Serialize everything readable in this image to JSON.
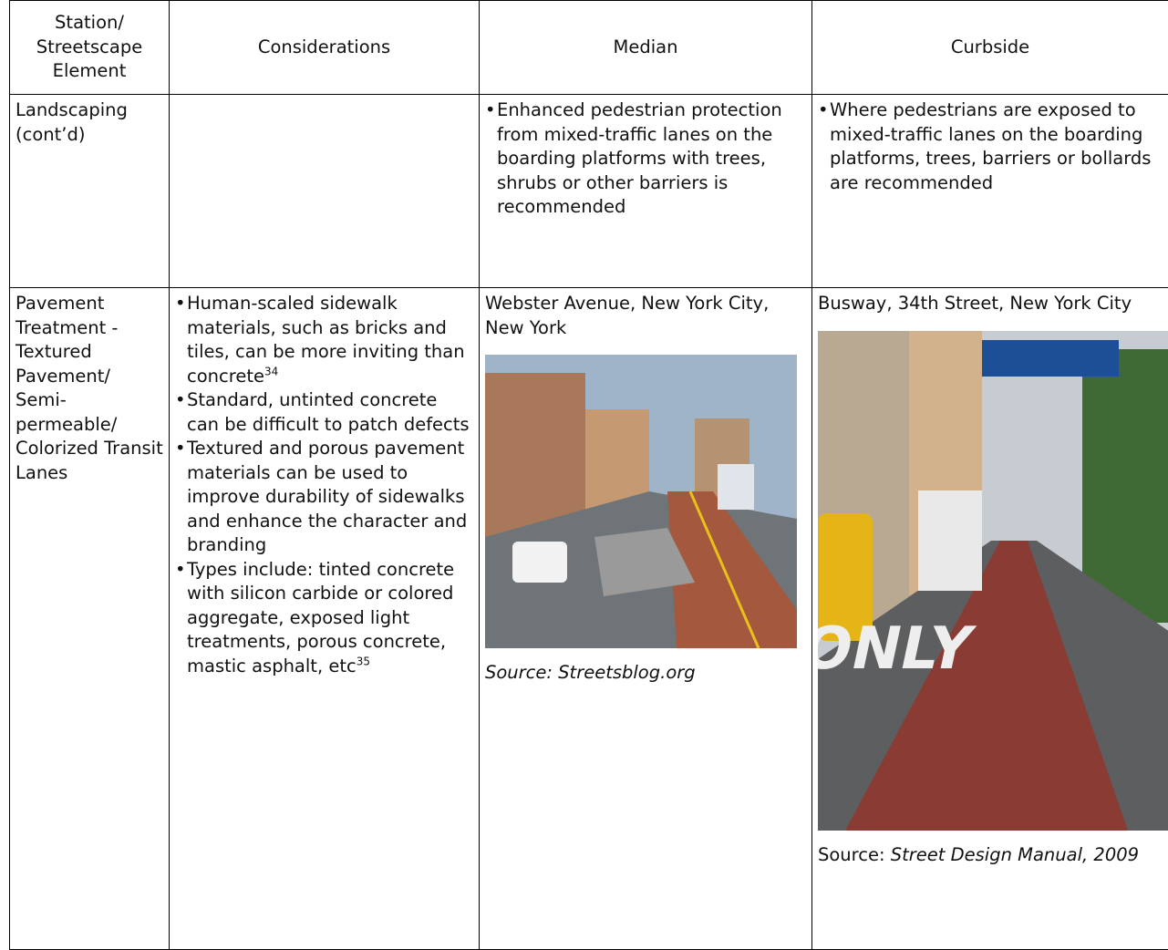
{
  "table": {
    "header": [
      "Station/ Streetscape Element",
      "Considerations",
      "Median",
      "Curbside"
    ],
    "rows": [
      {
        "element": "Landscaping (cont’d)",
        "median": [
          "Enhanced pedestrian protection from mixed-traffic lanes on the boarding platforms with trees, shrubs or other barriers is recommended"
        ],
        "curbside": [
          "Where pedestrians are exposed to mixed-traffic lanes on the boarding platforms, trees, barriers or bollards are recommended"
        ]
      },
      {
        "element": "Pavement Treatment - Textured Pavement/ Semi-permeable/ Colorized Transit Lanes",
        "considerations": [
          {
            "text": "Human-scaled sidewalk materials, such as bricks and tiles, can be more inviting than concrete",
            "note": "34"
          },
          {
            "text": "Standard, untinted concrete can be difficult to patch defects"
          },
          {
            "text": "Textured and porous pavement materials can be used to improve durability of sidewalks and enhance the character and branding"
          },
          {
            "text": "Types include: tinted concrete with silicon carbide or colored aggregate, exposed light treatments, porous concrete, mastic asphalt, etc",
            "note": "35"
          }
        ],
        "median": {
          "caption": "Webster Avenue, New York City, New York",
          "source": "Source: Streetsblog.org"
        },
        "curbside": {
          "caption": "Busway, 34th Street, New York City",
          "source_prefix": "Source:",
          "source": "Street Design Manual, 2009"
        }
      }
    ]
  }
}
